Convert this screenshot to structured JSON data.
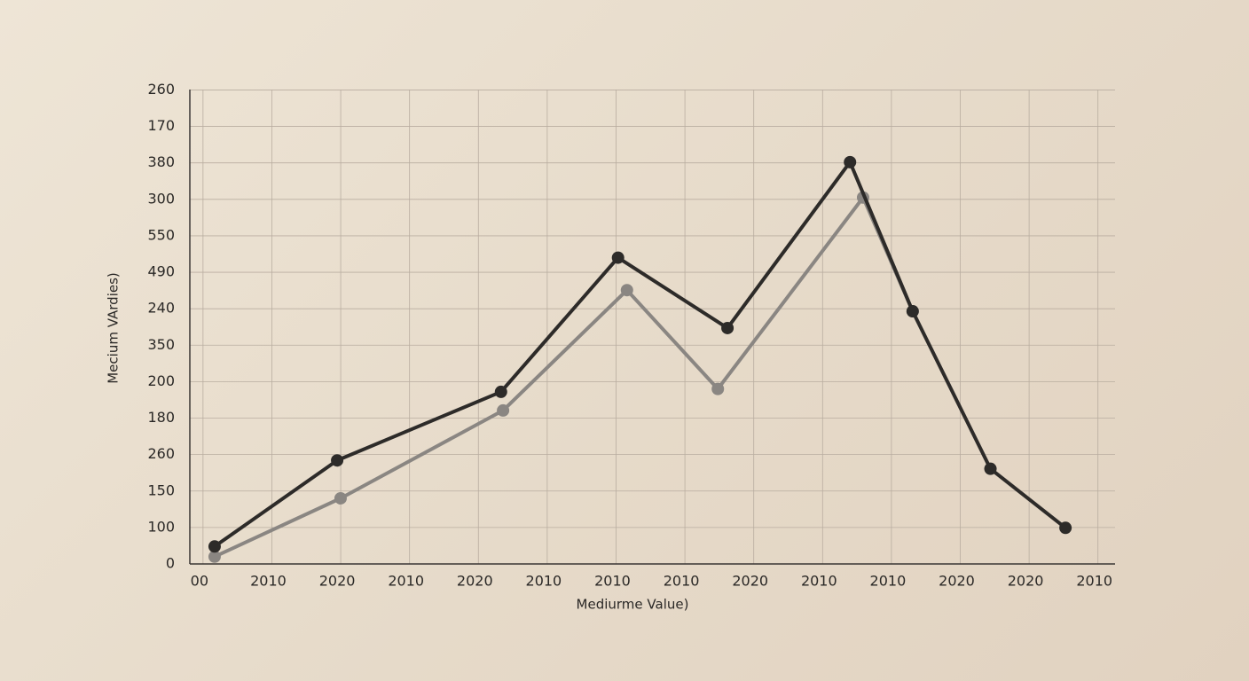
{
  "chart_data": {
    "type": "line",
    "x_label": "Mediurme Value)",
    "y_label": "Mecium VArdies)",
    "xlim": [
      -0.14,
      13.3
    ],
    "xticks": [
      {
        "value": 0,
        "label": "00"
      },
      {
        "value": 1,
        "label": "2010"
      },
      {
        "value": 2,
        "label": "2020"
      },
      {
        "value": 3,
        "label": "2010"
      },
      {
        "value": 4,
        "label": "2020"
      },
      {
        "value": 5,
        "label": "2010"
      },
      {
        "value": 6,
        "label": "2010"
      },
      {
        "value": 7,
        "label": "2010"
      },
      {
        "value": 8,
        "label": "2020"
      },
      {
        "value": 9,
        "label": "2010"
      },
      {
        "value": 10,
        "label": "2010"
      },
      {
        "value": 11,
        "label": "2020"
      },
      {
        "value": 12,
        "label": "2020"
      },
      {
        "value": 13,
        "label": "2010"
      }
    ],
    "ylim": [
      0,
      13.4
    ],
    "yticks": [
      {
        "value": 0,
        "label": "0"
      },
      {
        "value": 1,
        "label": "100"
      },
      {
        "value": 2,
        "label": "150"
      },
      {
        "value": 3,
        "label": "260"
      },
      {
        "value": 4,
        "label": "180"
      },
      {
        "value": 5,
        "label": "200"
      },
      {
        "value": 6,
        "label": "350"
      },
      {
        "value": 7,
        "label": "240"
      },
      {
        "value": 8,
        "label": "490"
      },
      {
        "value": 9,
        "label": "550"
      },
      {
        "value": 10,
        "label": "300"
      },
      {
        "value": 11,
        "label": "380"
      },
      {
        "value": 12,
        "label": "170"
      },
      {
        "value": 13,
        "label": "260"
      }
    ],
    "grid": true,
    "series": [
      {
        "color": "#8a8682",
        "x": [
          0.22,
          2.05,
          4.41,
          6.21,
          7.53,
          9.64,
          10.36
        ],
        "values": [
          0.2,
          1.8,
          4.21,
          7.51,
          4.8,
          10.05,
          6.93
        ]
      },
      {
        "color": "#2d2b29",
        "x": [
          0.22,
          2.0,
          4.38,
          6.08,
          7.67,
          9.45,
          10.36,
          11.49,
          12.58
        ],
        "values": [
          0.48,
          2.84,
          4.72,
          8.4,
          6.47,
          11.02,
          6.93,
          2.61,
          0.99
        ]
      }
    ]
  }
}
